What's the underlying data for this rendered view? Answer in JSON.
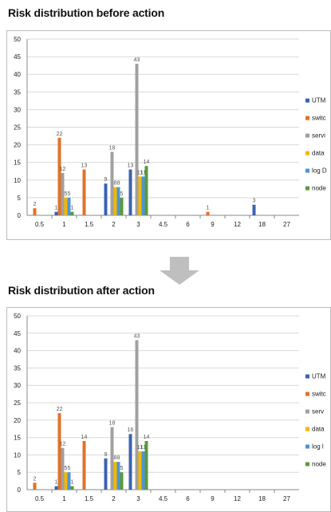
{
  "colors": {
    "UTM": "#3b62b0",
    "switch": "#e0722a",
    "service": "#a0a0a0",
    "database": "#f2b800",
    "log": "#4d95d3",
    "node": "#5a9a3a"
  },
  "arrow_icon": "down-arrow-icon",
  "chart_data": [
    {
      "type": "bar",
      "title": "Risk distribution before action",
      "categories": [
        "0.5",
        "1",
        "1.5",
        "2",
        "3",
        "4.5",
        "6",
        "9",
        "12",
        "18",
        "27"
      ],
      "ylim": [
        0,
        50
      ],
      "yticks": [
        0,
        5,
        10,
        15,
        20,
        25,
        30,
        35,
        40,
        45,
        50
      ],
      "grid": true,
      "legend_position": "right",
      "legend": [
        "UTM",
        "switc",
        "servi",
        "data",
        "log D",
        "node"
      ],
      "series": [
        {
          "name": "UTM",
          "values": [
            0,
            1,
            0,
            9,
            13,
            0,
            0,
            0,
            0,
            3,
            0
          ]
        },
        {
          "name": "switch",
          "values": [
            2,
            22,
            13,
            0,
            0,
            0,
            0,
            1,
            0,
            0,
            0
          ]
        },
        {
          "name": "service",
          "values": [
            0,
            12,
            0,
            18,
            43,
            0,
            0,
            0,
            0,
            0,
            0
          ]
        },
        {
          "name": "database",
          "values": [
            0,
            5,
            0,
            8,
            11,
            0,
            0,
            0,
            0,
            0,
            0
          ]
        },
        {
          "name": "log",
          "values": [
            0,
            5,
            0,
            8,
            11,
            0,
            0,
            0,
            0,
            0,
            0
          ]
        },
        {
          "name": "node",
          "values": [
            0,
            1,
            0,
            5,
            14,
            0,
            0,
            0,
            0,
            0,
            0
          ]
        }
      ]
    },
    {
      "type": "bar",
      "title": "Risk distribution after action",
      "categories": [
        "0.5",
        "1",
        "1.5",
        "2",
        "3",
        "4.5",
        "6",
        "9",
        "12",
        "18",
        "27"
      ],
      "ylim": [
        0,
        50
      ],
      "yticks": [
        0,
        5,
        10,
        15,
        20,
        25,
        30,
        35,
        40,
        45,
        50
      ],
      "grid": true,
      "legend_position": "right",
      "legend": [
        "UTM",
        "switc",
        "serv",
        "data",
        "log l",
        "node"
      ],
      "series": [
        {
          "name": "UTM",
          "values": [
            0,
            1,
            0,
            9,
            16,
            0,
            0,
            0,
            0,
            0,
            0
          ]
        },
        {
          "name": "switch",
          "values": [
            2,
            22,
            14,
            0,
            0,
            0,
            0,
            0,
            0,
            0,
            0
          ]
        },
        {
          "name": "service",
          "values": [
            0,
            12,
            0,
            18,
            43,
            0,
            0,
            0,
            0,
            0,
            0
          ]
        },
        {
          "name": "database",
          "values": [
            0,
            5,
            0,
            8,
            11,
            0,
            0,
            0,
            0,
            0,
            0
          ]
        },
        {
          "name": "log",
          "values": [
            0,
            5,
            0,
            8,
            11,
            0,
            0,
            0,
            0,
            0,
            0
          ]
        },
        {
          "name": "node",
          "values": [
            0,
            1,
            0,
            5,
            14,
            0,
            0,
            0,
            0,
            0,
            0
          ]
        }
      ]
    }
  ]
}
